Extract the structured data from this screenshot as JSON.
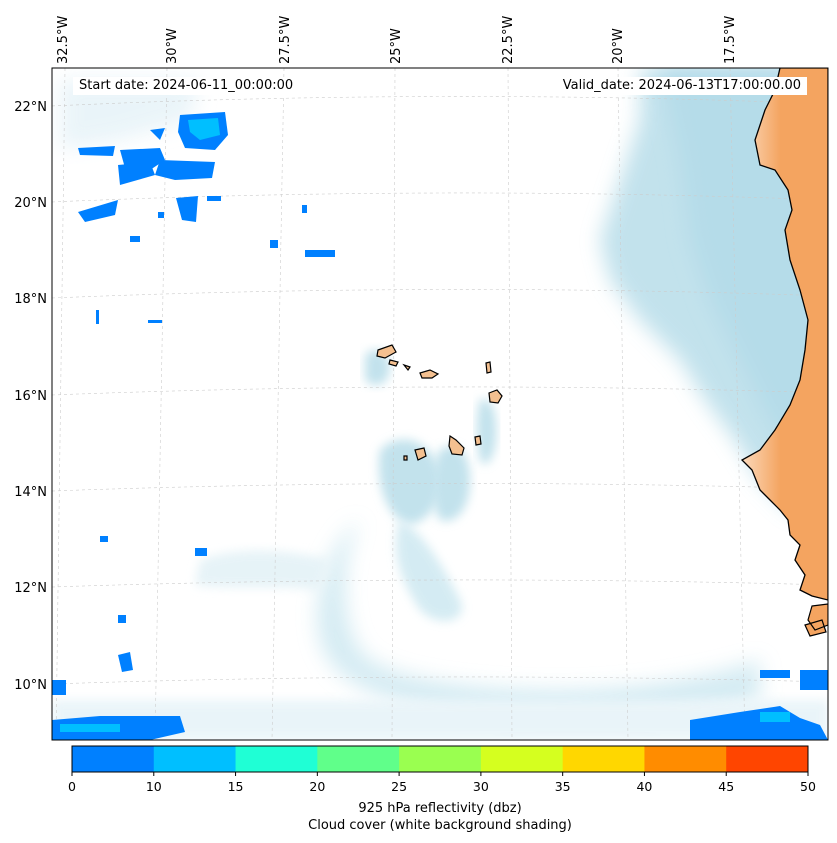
{
  "map": {
    "start_date": "Start date: 2024-06-11_00:00:00",
    "valid_date": "Valid_date: 2024-06-13T17:00:00.00",
    "lon_ticks": [
      "32.5°W",
      "30°W",
      "27.5°W",
      "25°W",
      "22.5°W",
      "20°W",
      "17.5°W"
    ],
    "lat_ticks": [
      "22°N",
      "20°N",
      "18°N",
      "16°N",
      "14°N",
      "12°N",
      "10°N"
    ],
    "land_color": "#f4a460",
    "cloud_color": "#b7dde9",
    "reflectivity_color": "#0080ff"
  },
  "colorbar": {
    "ticks": [
      "0",
      "10",
      "15",
      "20",
      "25",
      "30",
      "35",
      "40",
      "45",
      "50"
    ],
    "colors": [
      "#0080ff",
      "#00bfff",
      "#1fffd5",
      "#60ff8a",
      "#9aff50",
      "#d5ff1f",
      "#ffd700",
      "#ff8c00",
      "#ff4500"
    ],
    "label_1": "925 hPa reflectivity (dbz)",
    "label_2": "Cloud cover (white background shading)"
  }
}
